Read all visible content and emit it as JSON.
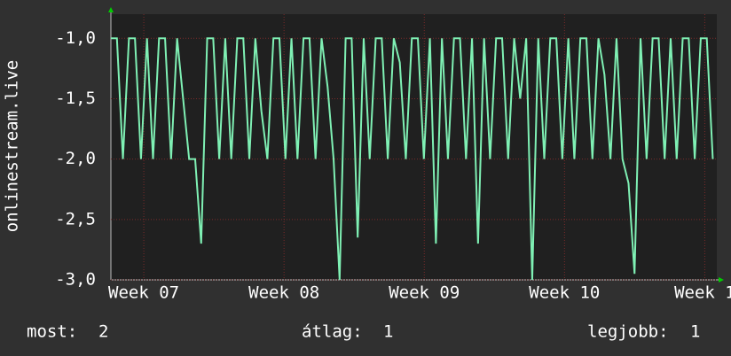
{
  "chart_data": {
    "type": "line",
    "y_label": "onlinestream.live",
    "x": [
      0,
      0.3,
      0.6,
      0.9,
      1.2,
      1.5,
      1.8,
      2.1,
      2.4,
      2.7,
      3,
      3.3,
      3.6,
      3.9,
      4.2,
      4.5,
      4.8,
      5.1,
      5.4,
      5.7,
      6,
      6.3,
      6.6,
      6.9,
      7.2,
      7.5,
      7.8,
      8.1,
      8.4,
      8.7,
      9,
      9.3,
      9.6,
      9.9,
      10.2,
      10.5,
      10.8,
      11.1,
      11.4,
      11.7,
      12,
      12.3,
      12.6,
      12.9,
      13.2,
      13.5,
      13.8,
      14.1,
      14.4,
      14.7,
      15,
      15.3,
      15.6,
      15.9,
      16.2,
      16.5,
      16.8,
      17.1,
      17.4,
      17.7,
      18,
      18.3,
      18.6,
      18.9,
      19.2,
      19.5,
      19.8,
      20.1,
      20.4,
      20.7,
      21,
      21.3,
      21.6,
      21.9,
      22.2,
      22.5,
      22.8,
      23.1,
      23.4,
      23.7,
      24,
      24.3,
      24.6,
      24.9,
      25.2,
      25.5,
      25.8,
      26.1,
      26.4,
      26.7,
      27,
      27.3,
      27.6,
      27.9,
      28.2,
      28.5,
      28.8,
      29.1,
      29.4,
      29.7,
      30
    ],
    "series": [
      {
        "name": "onlinestream.live",
        "color": "#7ff0b4",
        "values": [
          -1,
          -1,
          -2,
          -1,
          -1,
          -2,
          -1,
          -2,
          -1,
          -1,
          -2,
          -1,
          -1.5,
          -2,
          -2,
          -2.7,
          -1,
          -1,
          -2,
          -1,
          -2,
          -1,
          -1,
          -2,
          -1,
          -1.6,
          -2,
          -1,
          -1,
          -2,
          -1,
          -2,
          -1,
          -1,
          -2,
          -1,
          -1.4,
          -2,
          -3,
          -1,
          -1,
          -2.65,
          -1,
          -2,
          -1,
          -1,
          -2,
          -1,
          -1.2,
          -2,
          -1,
          -1,
          -2,
          -1,
          -2.7,
          -1,
          -2,
          -1,
          -1,
          -2,
          -1,
          -2.7,
          -1,
          -2,
          -1,
          -1,
          -2,
          -1,
          -1.5,
          -1,
          -3,
          -1,
          -2,
          -1,
          -1,
          -2,
          -1,
          -2,
          -1,
          -1,
          -2,
          -1,
          -1.3,
          -2,
          -1,
          -2,
          -2.2,
          -2.95,
          -1,
          -2,
          -1,
          -1,
          -2,
          -1,
          -2,
          -1,
          -1,
          -2,
          -1,
          -1,
          -2
        ]
      }
    ],
    "xlim": [
      0,
      30.2
    ],
    "xticks": [
      {
        "value": 1.64,
        "label": "Week 07"
      },
      {
        "value": 8.63,
        "label": "Week 08"
      },
      {
        "value": 15.62,
        "label": "Week 09"
      },
      {
        "value": 22.61,
        "label": "Week 10"
      },
      {
        "value": 29.6,
        "label": "Week 1"
      }
    ],
    "ylim": [
      -3.0,
      -0.8
    ],
    "yticks": [
      {
        "value": -3,
        "label": "-3,0"
      },
      {
        "value": -2.5,
        "label": "-2,5"
      },
      {
        "value": -2,
        "label": "-2,0"
      },
      {
        "value": -1.5,
        "label": "-1,5"
      },
      {
        "value": -1,
        "label": "-1,0"
      }
    ],
    "grid": true,
    "stats": [
      {
        "label": "most:",
        "value": 2
      },
      {
        "label": "átlag:",
        "value": 1
      },
      {
        "label": "legjobb:",
        "value": 1
      }
    ]
  }
}
